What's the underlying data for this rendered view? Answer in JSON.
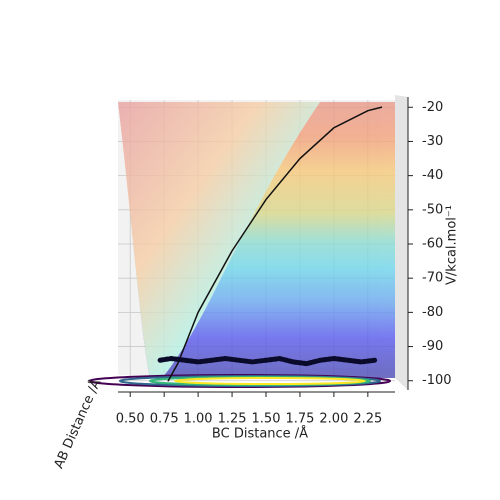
{
  "chart_data": {
    "type": "surface3d",
    "xlabel": "BC Distance /Å",
    "ylabel": "AB Distance /Å",
    "zlabel": "V/kcal.mol⁻¹",
    "xlim": [
      0.41,
      2.45
    ],
    "xticks": [
      {
        "value": 0.5,
        "label": "0.50"
      },
      {
        "value": 0.75,
        "label": "0.75"
      },
      {
        "value": 1.0,
        "label": "1.00"
      },
      {
        "value": 1.25,
        "label": "1.25"
      },
      {
        "value": 1.5,
        "label": "1.50"
      },
      {
        "value": 1.75,
        "label": "1.75"
      },
      {
        "value": 2.0,
        "label": "2.00"
      },
      {
        "value": 2.25,
        "label": "2.25"
      }
    ],
    "zlim": [
      -103,
      -17
    ],
    "zticks": [
      -20,
      -30,
      -40,
      -50,
      -60,
      -70,
      -80,
      -90,
      -100
    ],
    "grid": true,
    "profile": {
      "color": "#111111",
      "x": [
        0.78,
        0.85,
        1.0,
        1.25,
        1.5,
        1.75,
        2.0,
        2.25,
        2.35
      ],
      "values": [
        -100,
        -95,
        -80,
        -62,
        -47,
        -35,
        -26,
        -21,
        -20
      ]
    },
    "trajectory": {
      "color": "#0a0a2a",
      "x": [
        0.72,
        0.8,
        0.9,
        1.0,
        1.1,
        1.2,
        1.3,
        1.4,
        1.5,
        1.6,
        1.7,
        1.8,
        1.9,
        2.0,
        2.1,
        2.2,
        2.3
      ],
      "values": [
        -94,
        -93.5,
        -94,
        -94.5,
        -94,
        -93.5,
        -94,
        -94.5,
        -94,
        -93.5,
        -94.5,
        -95,
        -94,
        -93.5,
        -94,
        -94.5,
        -94
      ]
    }
  }
}
